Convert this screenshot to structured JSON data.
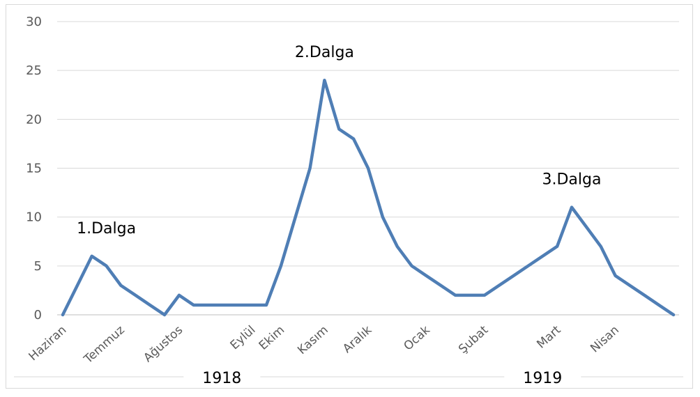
{
  "chart_data": {
    "type": "line",
    "ylim": [
      0,
      30
    ],
    "yticks": [
      0,
      5,
      10,
      15,
      20,
      25,
      30
    ],
    "grid": true,
    "color": "#4f7eb5",
    "values": [
      0,
      3,
      6,
      5,
      3,
      2,
      1,
      0,
      2,
      1,
      1,
      1,
      1,
      1,
      1,
      5,
      10,
      15,
      24,
      19,
      18,
      15,
      10,
      7,
      5,
      4,
      3,
      2,
      2,
      2,
      3,
      4,
      5,
      6,
      7,
      11,
      9,
      7,
      4,
      3,
      2,
      1,
      0
    ],
    "month_labels": [
      {
        "label": "Haziran",
        "index": 0
      },
      {
        "label": "Temmuz",
        "index": 4
      },
      {
        "label": "Ağustos",
        "index": 8
      },
      {
        "label": "Eylül",
        "index": 13
      },
      {
        "label": "Ekim",
        "index": 15
      },
      {
        "label": "Kasım",
        "index": 18
      },
      {
        "label": "Aralık",
        "index": 21
      },
      {
        "label": "Ocak",
        "index": 25
      },
      {
        "label": "Şubat",
        "index": 29
      },
      {
        "label": "Mart",
        "index": 34
      },
      {
        "label": "Nisan",
        "index": 38
      }
    ],
    "annotations": [
      {
        "text": "1.Dalga",
        "index": 3,
        "value": 6
      },
      {
        "text": "2.Dalga",
        "index": 18,
        "value": 24
      },
      {
        "text": "3.Dalga",
        "index": 35,
        "value": 11
      }
    ],
    "years": [
      {
        "label": "1918",
        "from_index": 0,
        "to_index": 24
      },
      {
        "label": "1919",
        "from_index": 24,
        "to_index": 42
      }
    ]
  }
}
